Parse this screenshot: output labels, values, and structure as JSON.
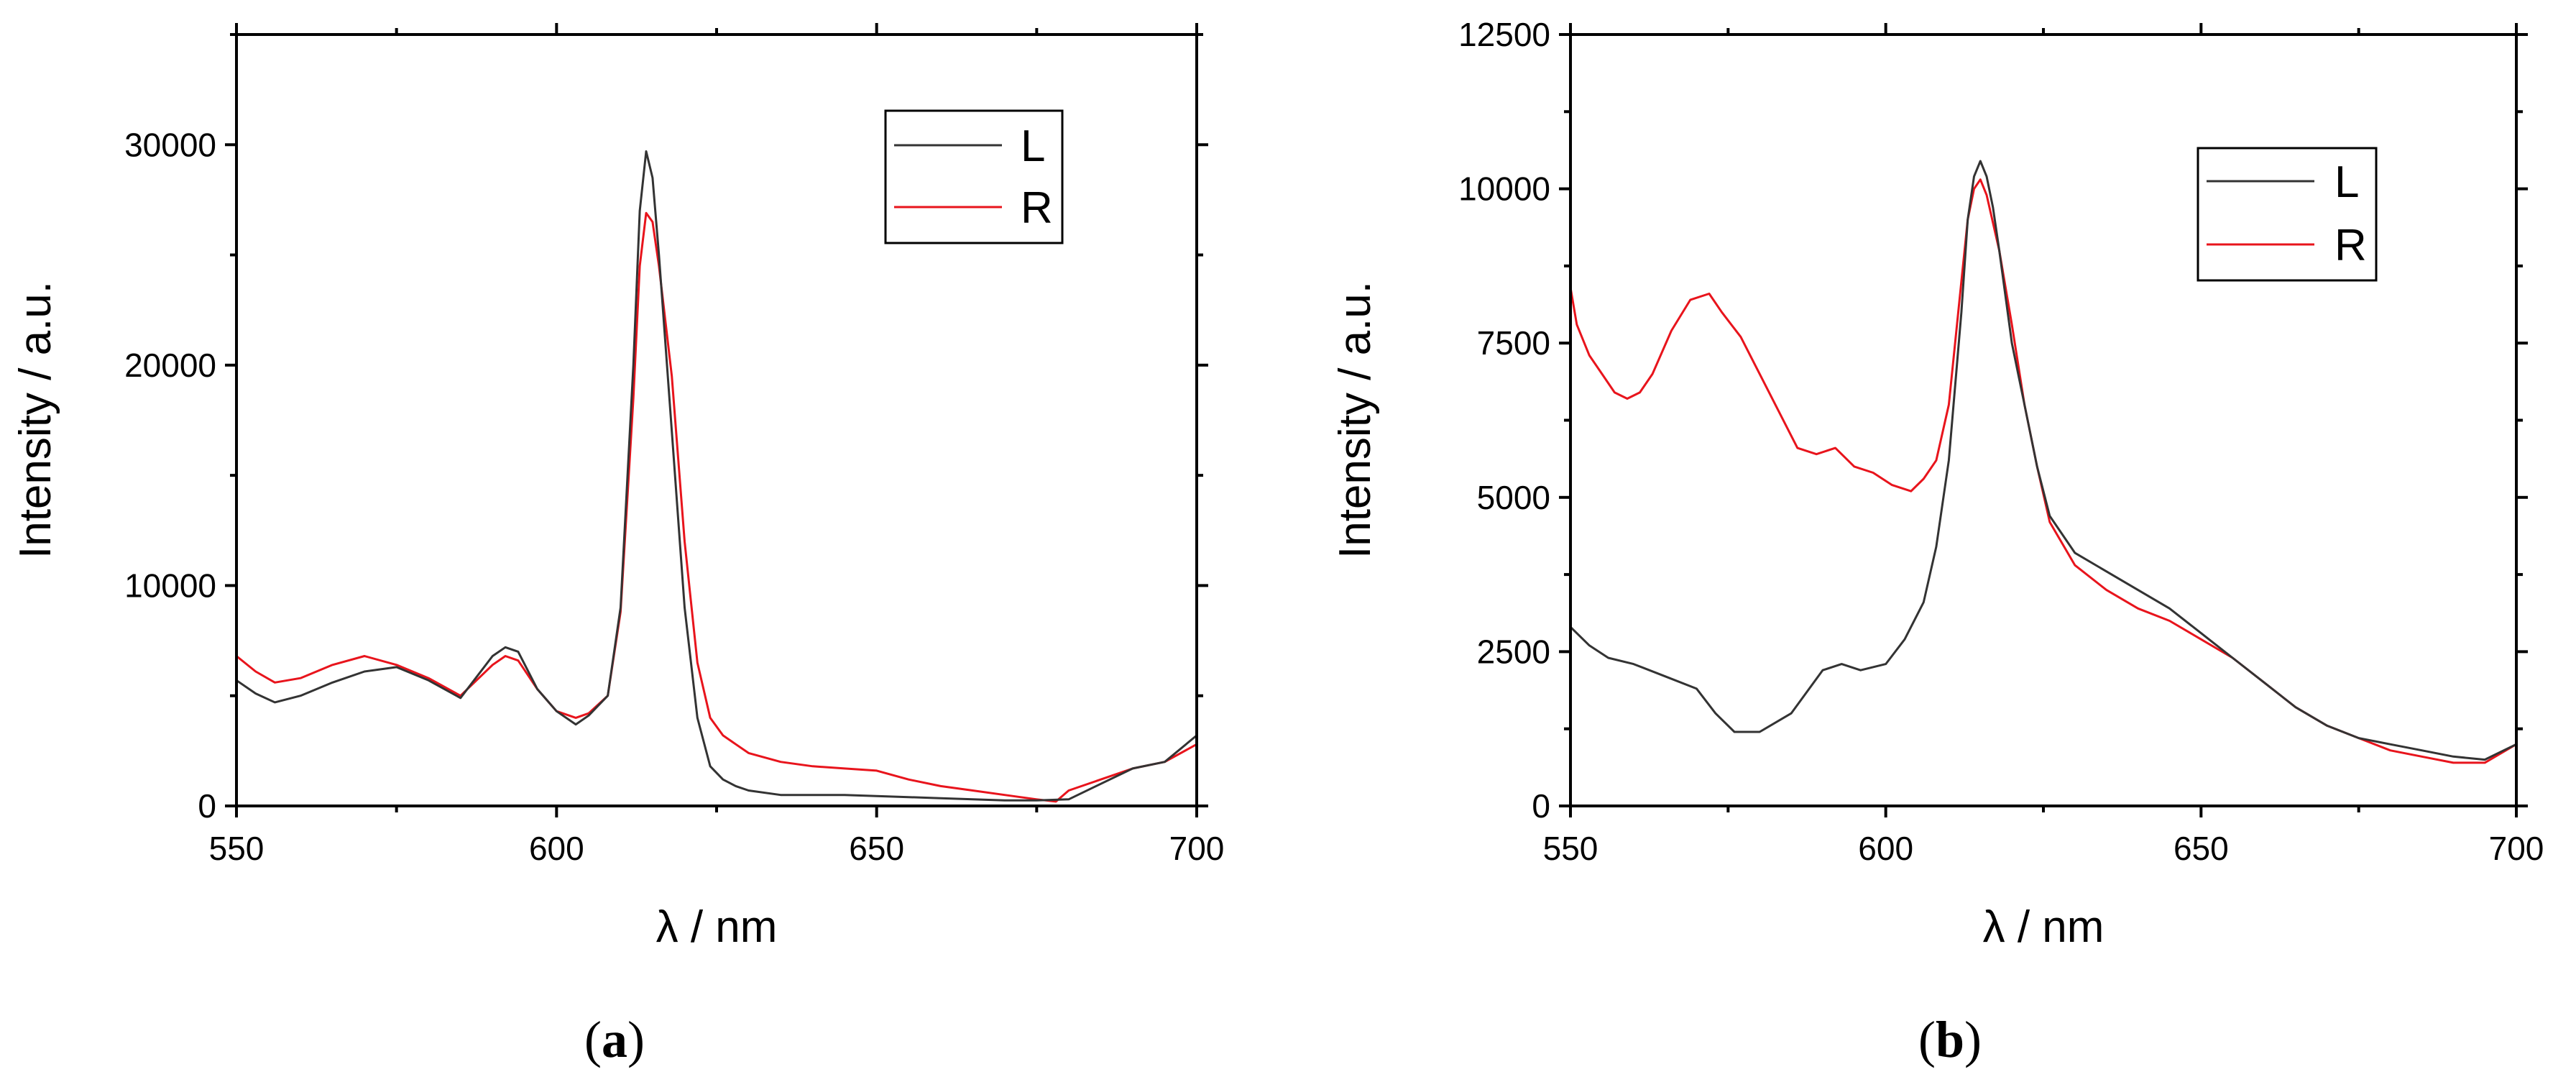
{
  "chart_data": [
    {
      "type": "line",
      "panel": "a",
      "panel_label": "a",
      "xlabel": "λ / nm",
      "ylabel": "Intensity / a.u.",
      "xlim": [
        550,
        700
      ],
      "ylim": [
        0,
        35000
      ],
      "xticks": [
        550,
        600,
        650,
        700
      ],
      "yticks": [
        0,
        10000,
        20000,
        30000
      ],
      "xtick_labels": [
        "550",
        "600",
        "650",
        "700"
      ],
      "ytick_labels": [
        "0",
        "10000",
        "20000",
        "30000"
      ],
      "legend": [
        "L",
        "R"
      ],
      "legend_position": "top-right",
      "colors": {
        "L": "#333333",
        "R": "#e8141c"
      },
      "series": [
        {
          "name": "L",
          "x": [
            550,
            553,
            556,
            560,
            565,
            570,
            575,
            580,
            585,
            590,
            592,
            594,
            597,
            600,
            603,
            605,
            608,
            610,
            612,
            613,
            614,
            615,
            616,
            618,
            620,
            622,
            624,
            626,
            628,
            630,
            635,
            640,
            645,
            650,
            655,
            660,
            665,
            670,
            675,
            680,
            685,
            690,
            695,
            700
          ],
          "y": [
            5700,
            5100,
            4700,
            5000,
            5600,
            6100,
            6300,
            5700,
            4900,
            6800,
            7200,
            7000,
            5300,
            4300,
            3700,
            4100,
            5000,
            9000,
            20000,
            27000,
            29700,
            28500,
            25000,
            17000,
            9000,
            4000,
            1800,
            1200,
            900,
            700,
            500,
            500,
            500,
            450,
            400,
            350,
            300,
            250,
            250,
            300,
            1000,
            1700,
            2000,
            3200
          ]
        },
        {
          "name": "R",
          "x": [
            550,
            553,
            556,
            560,
            565,
            570,
            575,
            580,
            585,
            590,
            592,
            594,
            597,
            600,
            603,
            605,
            608,
            610,
            612,
            613,
            614,
            615,
            616,
            618,
            620,
            622,
            624,
            626,
            628,
            630,
            635,
            640,
            645,
            650,
            655,
            660,
            665,
            670,
            675,
            678,
            680,
            685,
            690,
            695,
            700
          ],
          "y": [
            6800,
            6100,
            5600,
            5800,
            6400,
            6800,
            6400,
            5800,
            5000,
            6400,
            6800,
            6600,
            5300,
            4300,
            4000,
            4200,
            5000,
            8800,
            18500,
            24500,
            26900,
            26500,
            24500,
            19500,
            12000,
            6500,
            4000,
            3200,
            2800,
            2400,
            2000,
            1800,
            1700,
            1600,
            1200,
            900,
            700,
            500,
            300,
            200,
            700,
            1200,
            1700,
            2000,
            2800
          ]
        }
      ]
    },
    {
      "type": "line",
      "panel": "b",
      "panel_label": "b",
      "xlabel": "λ / nm",
      "ylabel": "Intensity / a.u.",
      "xlim": [
        550,
        700
      ],
      "ylim": [
        0,
        12500
      ],
      "xticks": [
        550,
        600,
        650,
        700
      ],
      "yticks": [
        0,
        2500,
        5000,
        7500,
        10000,
        12500
      ],
      "xtick_labels": [
        "550",
        "600",
        "650",
        "700"
      ],
      "ytick_labels": [
        "0",
        "2500",
        "5000",
        "7500",
        "10000",
        "12500"
      ],
      "legend": [
        "L",
        "R"
      ],
      "legend_position": "top-right",
      "colors": {
        "L": "#333333",
        "R": "#e8141c"
      },
      "series": [
        {
          "name": "L",
          "x": [
            550,
            553,
            556,
            560,
            565,
            570,
            573,
            576,
            580,
            585,
            590,
            593,
            596,
            600,
            603,
            606,
            608,
            610,
            612,
            613,
            614,
            615,
            616,
            617,
            618,
            620,
            622,
            624,
            626,
            630,
            635,
            640,
            645,
            650,
            655,
            660,
            665,
            670,
            675,
            680,
            685,
            690,
            695,
            700
          ],
          "y": [
            2900,
            2600,
            2400,
            2300,
            2100,
            1900,
            1500,
            1200,
            1200,
            1500,
            2200,
            2300,
            2200,
            2300,
            2700,
            3300,
            4200,
            5600,
            8000,
            9500,
            10200,
            10450,
            10200,
            9700,
            9000,
            7500,
            6500,
            5500,
            4700,
            4100,
            3800,
            3500,
            3200,
            2800,
            2400,
            2000,
            1600,
            1300,
            1100,
            1000,
            900,
            800,
            750,
            1000
          ]
        },
        {
          "name": "R",
          "x": [
            550,
            551,
            553,
            555,
            557,
            559,
            561,
            563,
            566,
            569,
            572,
            574,
            577,
            580,
            583,
            586,
            589,
            592,
            595,
            598,
            601,
            604,
            606,
            608,
            610,
            612,
            613,
            614,
            615,
            616,
            618,
            620,
            622,
            624,
            626,
            630,
            635,
            640,
            645,
            650,
            655,
            660,
            665,
            670,
            675,
            680,
            685,
            690,
            695,
            700
          ],
          "y": [
            8400,
            7800,
            7300,
            7000,
            6700,
            6600,
            6700,
            7000,
            7700,
            8200,
            8300,
            8000,
            7600,
            7000,
            6400,
            5800,
            5700,
            5800,
            5500,
            5400,
            5200,
            5100,
            5300,
            5600,
            6500,
            8500,
            9500,
            10000,
            10150,
            9900,
            9000,
            7800,
            6500,
            5500,
            4600,
            3900,
            3500,
            3200,
            3000,
            2700,
            2400,
            2000,
            1600,
            1300,
            1100,
            900,
            800,
            700,
            700,
            1000
          ]
        }
      ]
    }
  ]
}
